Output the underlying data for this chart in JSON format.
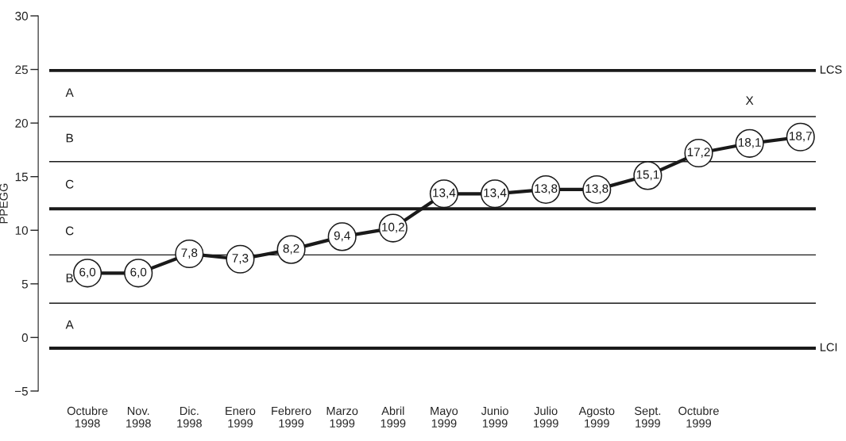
{
  "chart_data": {
    "type": "line",
    "ylabel": "PPEGG",
    "categories": [
      "Octubre\n1998",
      "Nov.\n1998",
      "Dic.\n1998",
      "Enero\n1999",
      "Febrero\n1999",
      "Marzo\n1999",
      "Abril\n1999",
      "Mayo\n1999",
      "Junio\n1999",
      "Julio\n1999",
      "Agosto\n1999",
      "Sept.\n1999",
      "Octubre\n1999",
      null,
      null
    ],
    "series": [
      {
        "color": "#1a1a1a",
        "values": [
          6.0,
          6.0,
          7.8,
          7.3,
          8.2,
          9.4,
          10.2,
          13.4,
          13.4,
          13.8,
          13.8,
          15.1,
          17.2,
          18.1,
          18.7
        ],
        "value_labels": [
          "6,0",
          "6,0",
          "7,8",
          "7,3",
          "8,2",
          "9,4",
          "10,2",
          "13,4",
          "13,4",
          "13,8",
          "13,8",
          "15,1",
          "17,2",
          "18,1",
          "18,7"
        ]
      }
    ],
    "marker": "circle",
    "line_style": "solid",
    "grid": false,
    "legend": false,
    "ylim": [
      -5,
      30
    ],
    "yticks": [
      {
        "value": -5,
        "label": "−5"
      },
      0,
      5,
      10,
      15,
      20,
      25,
      30
    ],
    "ref_lines": [
      {
        "axis": "y",
        "value": 24.9,
        "label": "LCS",
        "color": "#1a1a1a"
      },
      {
        "axis": "y",
        "value": 12.0,
        "label": null,
        "color": "#1a1a1a"
      },
      {
        "axis": "y",
        "value": -1.0,
        "label": "LCI",
        "color": "#1a1a1a"
      },
      {
        "axis": "y",
        "value": 20.6,
        "label": null,
        "color": "#1a1a1a"
      },
      {
        "axis": "y",
        "value": 16.4,
        "label": null,
        "color": "#1a1a1a"
      },
      {
        "axis": "y",
        "value": 7.7,
        "label": null,
        "color": "#1a1a1a"
      },
      {
        "axis": "y",
        "value": 3.2,
        "label": null,
        "color": "#1a1a1a"
      }
    ],
    "annotations": [
      "A",
      "B",
      "C",
      "C",
      "B",
      "A",
      "X"
    ]
  }
}
